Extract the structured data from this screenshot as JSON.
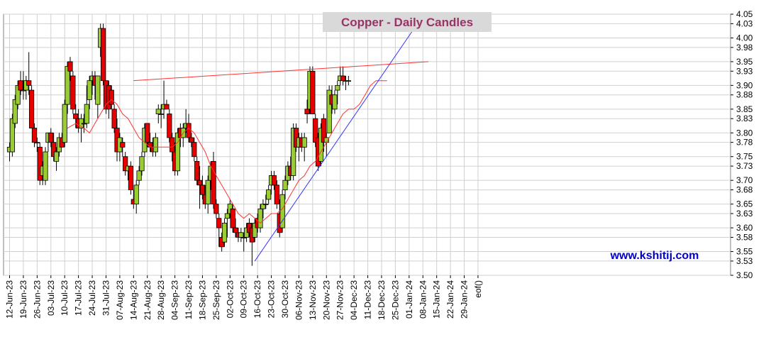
{
  "chart_data": {
    "type": "candlestick",
    "title": "Copper - Daily Candles",
    "watermark": "www.kshitij.com",
    "colors": {
      "up": "#9acd32",
      "down": "#e60000",
      "wick": "#000000",
      "moving_average": "#ff3333",
      "resistance_line": "#ff3333",
      "support_line": "#3333ff",
      "title_bg": "#d9d9d9",
      "title_text": "#993366",
      "watermark_text": "#0000cc",
      "grid": "#d0d0d0"
    },
    "ylim": [
      3.5,
      4.05
    ],
    "yticks": [
      "3.50",
      "3.53",
      "3.55",
      "3.58",
      "3.60",
      "3.63",
      "3.65",
      "3.68",
      "3.70",
      "3.73",
      "3.75",
      "3.78",
      "3.80",
      "3.83",
      "3.85",
      "3.88",
      "3.90",
      "3.93",
      "3.95",
      "3.98",
      "4.00",
      "4.03",
      "4.05"
    ],
    "xticks": [
      "12-Jun-23",
      "19-Jun-23",
      "26-Jun-23",
      "03-Jul-23",
      "10-Jul-23",
      "17-Jul-23",
      "24-Jul-23",
      "31-Jul-23",
      "07-Aug-23",
      "14-Aug-23",
      "21-Aug-23",
      "28-Aug-23",
      "04-Sep-23",
      "11-Sep-23",
      "18-Sep-23",
      "25-Sep-23",
      "02-Oct-23",
      "09-Oct-23",
      "16-Oct-23",
      "23-Oct-23",
      "30-Oct-23",
      "06-Nov-23",
      "13-Nov-23",
      "20-Nov-23",
      "27-Nov-23",
      "04-Dec-23",
      "11-Dec-23",
      "18-Dec-23",
      "25-Dec-23",
      "01-Jan-24",
      "08-Jan-24",
      "15-Jan-24",
      "22-Jan-24",
      "29-Jan-24",
      "eof()"
    ],
    "candles": [
      {
        "x": 0,
        "o": 3.76,
        "h": 3.78,
        "l": 3.74,
        "c": 3.77
      },
      {
        "x": 1,
        "o": 3.76,
        "h": 3.84,
        "l": 3.75,
        "c": 3.83
      },
      {
        "x": 2,
        "o": 3.82,
        "h": 3.88,
        "l": 3.81,
        "c": 3.87
      },
      {
        "x": 3,
        "o": 3.86,
        "h": 3.91,
        "l": 3.85,
        "c": 3.9
      },
      {
        "x": 4,
        "o": 3.91,
        "h": 3.93,
        "l": 3.88,
        "c": 3.89
      },
      {
        "x": 5,
        "o": 3.89,
        "h": 3.93,
        "l": 3.87,
        "c": 3.89
      },
      {
        "x": 6,
        "o": 3.89,
        "h": 3.92,
        "l": 3.87,
        "c": 3.91
      },
      {
        "x": 7,
        "o": 3.91,
        "h": 3.97,
        "l": 3.88,
        "c": 3.9
      },
      {
        "x": 8,
        "o": 3.89,
        "h": 3.9,
        "l": 3.81,
        "c": 3.81
      },
      {
        "x": 9,
        "o": 3.81,
        "h": 3.82,
        "l": 3.77,
        "c": 3.78
      },
      {
        "x": 10,
        "o": 3.78,
        "h": 3.79,
        "l": 3.76,
        "c": 3.78
      },
      {
        "x": 11,
        "o": 3.77,
        "h": 3.78,
        "l": 3.69,
        "c": 3.7
      },
      {
        "x": 12,
        "o": 3.71,
        "h": 3.74,
        "l": 3.69,
        "c": 3.73
      },
      {
        "x": 13,
        "o": 3.7,
        "h": 3.77,
        "l": 3.69,
        "c": 3.76
      },
      {
        "x": 14,
        "o": 3.78,
        "h": 3.8,
        "l": 3.76,
        "c": 3.8
      },
      {
        "x": 15,
        "o": 3.8,
        "h": 3.81,
        "l": 3.77,
        "c": 3.78
      },
      {
        "x": 16,
        "o": 3.78,
        "h": 3.8,
        "l": 3.74,
        "c": 3.75
      },
      {
        "x": 17,
        "o": 3.74,
        "h": 3.77,
        "l": 3.72,
        "c": 3.76
      },
      {
        "x": 18,
        "o": 3.76,
        "h": 3.8,
        "l": 3.75,
        "c": 3.79
      },
      {
        "x": 19,
        "o": 3.79,
        "h": 3.8,
        "l": 3.77,
        "c": 3.77
      },
      {
        "x": 20,
        "o": 3.78,
        "h": 3.87,
        "l": 3.77,
        "c": 3.86
      },
      {
        "x": 21,
        "o": 3.86,
        "h": 3.95,
        "l": 3.84,
        "c": 3.94
      },
      {
        "x": 22,
        "o": 3.95,
        "h": 3.96,
        "l": 3.91,
        "c": 3.93
      },
      {
        "x": 23,
        "o": 3.92,
        "h": 3.93,
        "l": 3.84,
        "c": 3.85
      },
      {
        "x": 24,
        "o": 3.84,
        "h": 3.86,
        "l": 3.81,
        "c": 3.83
      },
      {
        "x": 25,
        "o": 3.83,
        "h": 3.85,
        "l": 3.8,
        "c": 3.81
      },
      {
        "x": 26,
        "o": 3.81,
        "h": 3.84,
        "l": 3.78,
        "c": 3.83
      },
      {
        "x": 27,
        "o": 3.82,
        "h": 3.84,
        "l": 3.8,
        "c": 3.82
      },
      {
        "x": 28,
        "o": 3.82,
        "h": 3.9,
        "l": 3.81,
        "c": 3.86
      },
      {
        "x": 29,
        "o": 3.87,
        "h": 3.92,
        "l": 3.85,
        "c": 3.91
      },
      {
        "x": 30,
        "o": 3.91,
        "h": 3.93,
        "l": 3.88,
        "c": 3.92
      },
      {
        "x": 31,
        "o": 3.92,
        "h": 3.93,
        "l": 3.87,
        "c": 3.9
      },
      {
        "x": 32,
        "o": 3.86,
        "h": 3.92,
        "l": 3.83,
        "c": 3.92
      },
      {
        "x": 33,
        "o": 3.98,
        "h": 4.03,
        "l": 3.96,
        "c": 4.02
      },
      {
        "x": 34,
        "o": 4.02,
        "h": 4.03,
        "l": 3.9,
        "c": 3.91
      },
      {
        "x": 35,
        "o": 3.91,
        "h": 3.91,
        "l": 3.84,
        "c": 3.85
      },
      {
        "x": 36,
        "o": 3.9,
        "h": 3.91,
        "l": 3.83,
        "c": 3.85
      },
      {
        "x": 37,
        "o": 3.89,
        "h": 3.9,
        "l": 3.85,
        "c": 3.86
      },
      {
        "x": 38,
        "o": 3.85,
        "h": 3.86,
        "l": 3.8,
        "c": 3.81
      },
      {
        "x": 39,
        "o": 3.81,
        "h": 3.83,
        "l": 3.74,
        "c": 3.76
      },
      {
        "x": 40,
        "o": 3.76,
        "h": 3.8,
        "l": 3.74,
        "c": 3.79
      },
      {
        "x": 41,
        "o": 3.78,
        "h": 3.79,
        "l": 3.75,
        "c": 3.77
      },
      {
        "x": 42,
        "o": 3.75,
        "h": 3.76,
        "l": 3.71,
        "c": 3.72
      },
      {
        "x": 43,
        "o": 3.72,
        "h": 3.73,
        "l": 3.7,
        "c": 3.73
      },
      {
        "x": 44,
        "o": 3.73,
        "h": 3.74,
        "l": 3.67,
        "c": 3.68
      },
      {
        "x": 45,
        "o": 3.66,
        "h": 3.68,
        "l": 3.64,
        "c": 3.65
      },
      {
        "x": 46,
        "o": 3.65,
        "h": 3.7,
        "l": 3.63,
        "c": 3.69
      },
      {
        "x": 47,
        "o": 3.7,
        "h": 3.73,
        "l": 3.69,
        "c": 3.72
      },
      {
        "x": 48,
        "o": 3.72,
        "h": 3.76,
        "l": 3.71,
        "c": 3.75
      },
      {
        "x": 49,
        "o": 3.76,
        "h": 3.82,
        "l": 3.75,
        "c": 3.81
      },
      {
        "x": 50,
        "o": 3.82,
        "h": 3.82,
        "l": 3.77,
        "c": 3.78
      },
      {
        "x": 51,
        "o": 3.78,
        "h": 3.8,
        "l": 3.76,
        "c": 3.77
      },
      {
        "x": 52,
        "o": 3.77,
        "h": 3.79,
        "l": 3.75,
        "c": 3.76
      },
      {
        "x": 53,
        "o": 3.76,
        "h": 3.8,
        "l": 3.75,
        "c": 3.79
      },
      {
        "x": 54,
        "o": 3.84,
        "h": 3.86,
        "l": 3.82,
        "c": 3.85
      },
      {
        "x": 55,
        "o": 3.84,
        "h": 3.86,
        "l": 3.81,
        "c": 3.84
      },
      {
        "x": 56,
        "o": 3.85,
        "h": 3.91,
        "l": 3.83,
        "c": 3.86
      },
      {
        "x": 57,
        "o": 3.86,
        "h": 3.87,
        "l": 3.85,
        "c": 3.85
      },
      {
        "x": 58,
        "o": 3.84,
        "h": 3.85,
        "l": 3.78,
        "c": 3.79
      },
      {
        "x": 59,
        "o": 3.79,
        "h": 3.8,
        "l": 3.74,
        "c": 3.76
      },
      {
        "x": 60,
        "o": 3.76,
        "h": 3.78,
        "l": 3.71,
        "c": 3.72
      },
      {
        "x": 61,
        "o": 3.72,
        "h": 3.81,
        "l": 3.71,
        "c": 3.8
      },
      {
        "x": 62,
        "o": 3.81,
        "h": 3.82,
        "l": 3.77,
        "c": 3.79
      },
      {
        "x": 63,
        "o": 3.79,
        "h": 3.82,
        "l": 3.77,
        "c": 3.81
      },
      {
        "x": 64,
        "o": 3.81,
        "h": 3.85,
        "l": 3.8,
        "c": 3.82
      },
      {
        "x": 65,
        "o": 3.82,
        "h": 3.84,
        "l": 3.78,
        "c": 3.79
      },
      {
        "x": 66,
        "o": 3.79,
        "h": 3.8,
        "l": 3.77,
        "c": 3.78
      },
      {
        "x": 67,
        "o": 3.78,
        "h": 3.79,
        "l": 3.74,
        "c": 3.75
      },
      {
        "x": 68,
        "o": 3.74,
        "h": 3.75,
        "l": 3.69,
        "c": 3.7
      },
      {
        "x": 69,
        "o": 3.7,
        "h": 3.73,
        "l": 3.64,
        "c": 3.69
      },
      {
        "x": 70,
        "o": 3.69,
        "h": 3.71,
        "l": 3.66,
        "c": 3.67
      },
      {
        "x": 71,
        "o": 3.67,
        "h": 3.69,
        "l": 3.64,
        "c": 3.65
      },
      {
        "x": 72,
        "o": 3.65,
        "h": 3.71,
        "l": 3.63,
        "c": 3.7
      },
      {
        "x": 73,
        "o": 3.7,
        "h": 3.74,
        "l": 3.68,
        "c": 3.73
      },
      {
        "x": 74,
        "o": 3.74,
        "h": 3.76,
        "l": 3.64,
        "c": 3.65
      },
      {
        "x": 75,
        "o": 3.65,
        "h": 3.66,
        "l": 3.62,
        "c": 3.63
      },
      {
        "x": 76,
        "o": 3.62,
        "h": 3.63,
        "l": 3.56,
        "c": 3.6
      },
      {
        "x": 77,
        "o": 3.58,
        "h": 3.59,
        "l": 3.55,
        "c": 3.56
      },
      {
        "x": 78,
        "o": 3.57,
        "h": 3.62,
        "l": 3.56,
        "c": 3.61
      },
      {
        "x": 79,
        "o": 3.62,
        "h": 3.64,
        "l": 3.58,
        "c": 3.63
      },
      {
        "x": 80,
        "o": 3.63,
        "h": 3.66,
        "l": 3.62,
        "c": 3.65
      },
      {
        "x": 81,
        "o": 3.64,
        "h": 3.65,
        "l": 3.59,
        "c": 3.6
      },
      {
        "x": 82,
        "o": 3.6,
        "h": 3.62,
        "l": 3.58,
        "c": 3.59
      },
      {
        "x": 83,
        "o": 3.59,
        "h": 3.6,
        "l": 3.57,
        "c": 3.58
      },
      {
        "x": 84,
        "o": 3.58,
        "h": 3.6,
        "l": 3.57,
        "c": 3.59
      },
      {
        "x": 85,
        "o": 3.58,
        "h": 3.59,
        "l": 3.55,
        "c": 3.58
      },
      {
        "x": 86,
        "o": 3.58,
        "h": 3.61,
        "l": 3.57,
        "c": 3.6
      },
      {
        "x": 87,
        "o": 3.61,
        "h": 3.62,
        "l": 3.58,
        "c": 3.59
      },
      {
        "x": 88,
        "o": 3.6,
        "h": 3.61,
        "l": 3.52,
        "c": 3.57
      },
      {
        "x": 89,
        "o": 3.58,
        "h": 3.62,
        "l": 3.57,
        "c": 3.61
      },
      {
        "x": 90,
        "o": 3.62,
        "h": 3.63,
        "l": 3.59,
        "c": 3.6
      },
      {
        "x": 91,
        "o": 3.6,
        "h": 3.65,
        "l": 3.59,
        "c": 3.64
      },
      {
        "x": 92,
        "o": 3.64,
        "h": 3.66,
        "l": 3.62,
        "c": 3.65
      },
      {
        "x": 93,
        "o": 3.65,
        "h": 3.67,
        "l": 3.64,
        "c": 3.65
      },
      {
        "x": 94,
        "o": 3.66,
        "h": 3.69,
        "l": 3.65,
        "c": 3.68
      },
      {
        "x": 95,
        "o": 3.69,
        "h": 3.72,
        "l": 3.67,
        "c": 3.71
      },
      {
        "x": 96,
        "o": 3.71,
        "h": 3.72,
        "l": 3.68,
        "c": 3.69
      },
      {
        "x": 97,
        "o": 3.69,
        "h": 3.7,
        "l": 3.64,
        "c": 3.65
      },
      {
        "x": 98,
        "o": 3.63,
        "h": 3.66,
        "l": 3.58,
        "c": 3.59
      },
      {
        "x": 99,
        "o": 3.6,
        "h": 3.68,
        "l": 3.59,
        "c": 3.67
      },
      {
        "x": 100,
        "o": 3.68,
        "h": 3.71,
        "l": 3.66,
        "c": 3.7
      },
      {
        "x": 101,
        "o": 3.7,
        "h": 3.74,
        "l": 3.69,
        "c": 3.73
      },
      {
        "x": 102,
        "o": 3.73,
        "h": 3.75,
        "l": 3.7,
        "c": 3.71
      },
      {
        "x": 103,
        "o": 3.71,
        "h": 3.82,
        "l": 3.7,
        "c": 3.81
      },
      {
        "x": 104,
        "o": 3.81,
        "h": 3.82,
        "l": 3.76,
        "c": 3.77
      },
      {
        "x": 105,
        "o": 3.77,
        "h": 3.8,
        "l": 3.74,
        "c": 3.79
      },
      {
        "x": 106,
        "o": 3.79,
        "h": 3.8,
        "l": 3.76,
        "c": 3.77
      },
      {
        "x": 107,
        "o": 3.77,
        "h": 3.8,
        "l": 3.74,
        "c": 3.79
      },
      {
        "x": 108,
        "o": 3.85,
        "h": 3.87,
        "l": 3.82,
        "c": 3.84
      },
      {
        "x": 109,
        "o": 3.85,
        "h": 3.94,
        "l": 3.84,
        "c": 3.93
      },
      {
        "x": 110,
        "o": 3.93,
        "h": 3.94,
        "l": 3.84,
        "c": 3.84
      },
      {
        "x": 111,
        "o": 3.83,
        "h": 3.84,
        "l": 3.77,
        "c": 3.78
      },
      {
        "x": 112,
        "o": 3.79,
        "h": 3.8,
        "l": 3.72,
        "c": 3.73
      },
      {
        "x": 113,
        "o": 3.74,
        "h": 3.82,
        "l": 3.73,
        "c": 3.81
      },
      {
        "x": 114,
        "o": 3.83,
        "h": 3.84,
        "l": 3.76,
        "c": 3.78
      },
      {
        "x": 115,
        "o": 3.78,
        "h": 3.8,
        "l": 3.75,
        "c": 3.79
      },
      {
        "x": 116,
        "o": 3.8,
        "h": 3.9,
        "l": 3.8,
        "c": 3.89
      },
      {
        "x": 117,
        "o": 3.88,
        "h": 3.9,
        "l": 3.84,
        "c": 3.86
      },
      {
        "x": 118,
        "o": 3.85,
        "h": 3.89,
        "l": 3.84,
        "c": 3.88
      },
      {
        "x": 119,
        "o": 3.89,
        "h": 3.91,
        "l": 3.86,
        "c": 3.9
      },
      {
        "x": 120,
        "o": 3.91,
        "h": 3.94,
        "l": 3.9,
        "c": 3.92
      },
      {
        "x": 121,
        "o": 3.92,
        "h": 3.94,
        "l": 3.9,
        "c": 3.91
      },
      {
        "x": 122,
        "o": 3.91,
        "h": 3.92,
        "l": 3.89,
        "c": 3.91
      },
      {
        "x": 123,
        "o": 3.91,
        "h": 3.92,
        "l": 3.9,
        "c": 3.91
      }
    ],
    "moving_average": [
      {
        "x": 21,
        "y": 3.81
      },
      {
        "x": 24,
        "y": 3.82
      },
      {
        "x": 27,
        "y": 3.81
      },
      {
        "x": 29,
        "y": 3.8
      },
      {
        "x": 31,
        "y": 3.82
      },
      {
        "x": 33,
        "y": 3.84
      },
      {
        "x": 35,
        "y": 3.86
      },
      {
        "x": 37,
        "y": 3.87
      },
      {
        "x": 39,
        "y": 3.86
      },
      {
        "x": 41,
        "y": 3.84
      },
      {
        "x": 43,
        "y": 3.83
      },
      {
        "x": 45,
        "y": 3.81
      },
      {
        "x": 47,
        "y": 3.79
      },
      {
        "x": 49,
        "y": 3.78
      },
      {
        "x": 51,
        "y": 3.77
      },
      {
        "x": 53,
        "y": 3.77
      },
      {
        "x": 55,
        "y": 3.77
      },
      {
        "x": 57,
        "y": 3.77
      },
      {
        "x": 59,
        "y": 3.77
      },
      {
        "x": 61,
        "y": 3.78
      },
      {
        "x": 63,
        "y": 3.8
      },
      {
        "x": 65,
        "y": 3.81
      },
      {
        "x": 67,
        "y": 3.8
      },
      {
        "x": 69,
        "y": 3.78
      },
      {
        "x": 71,
        "y": 3.76
      },
      {
        "x": 73,
        "y": 3.73
      },
      {
        "x": 75,
        "y": 3.71
      },
      {
        "x": 77,
        "y": 3.69
      },
      {
        "x": 79,
        "y": 3.67
      },
      {
        "x": 81,
        "y": 3.65
      },
      {
        "x": 83,
        "y": 3.63
      },
      {
        "x": 85,
        "y": 3.62
      },
      {
        "x": 87,
        "y": 3.63
      },
      {
        "x": 89,
        "y": 3.62
      },
      {
        "x": 91,
        "y": 3.61
      },
      {
        "x": 93,
        "y": 3.62
      },
      {
        "x": 95,
        "y": 3.63
      },
      {
        "x": 97,
        "y": 3.63
      },
      {
        "x": 99,
        "y": 3.64
      },
      {
        "x": 101,
        "y": 3.66
      },
      {
        "x": 103,
        "y": 3.68
      },
      {
        "x": 105,
        "y": 3.7
      },
      {
        "x": 107,
        "y": 3.71
      },
      {
        "x": 109,
        "y": 3.73
      },
      {
        "x": 111,
        "y": 3.74
      },
      {
        "x": 113,
        "y": 3.76
      },
      {
        "x": 115,
        "y": 3.78
      },
      {
        "x": 117,
        "y": 3.8
      },
      {
        "x": 119,
        "y": 3.82
      },
      {
        "x": 121,
        "y": 3.84
      },
      {
        "x": 123,
        "y": 3.85
      },
      {
        "x": 125,
        "y": 3.85
      },
      {
        "x": 127,
        "y": 3.86
      },
      {
        "x": 129,
        "y": 3.88
      },
      {
        "x": 131,
        "y": 3.9
      },
      {
        "x": 133,
        "y": 3.91
      },
      {
        "x": 135,
        "y": 3.91
      },
      {
        "x": 137,
        "y": 3.91
      }
    ],
    "resistance_line": [
      {
        "x": 45,
        "y": 3.91
      },
      {
        "x": 152,
        "y": 3.95
      }
    ],
    "support_line": [
      {
        "x": 89,
        "y": 3.53
      },
      {
        "x": 148,
        "y": 4.03
      }
    ]
  }
}
